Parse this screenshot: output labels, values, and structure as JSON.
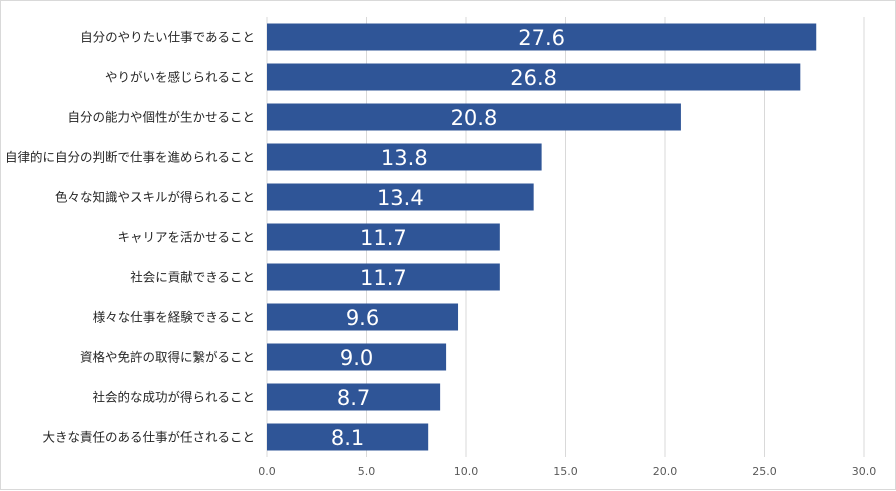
{
  "chart_data": {
    "type": "bar",
    "orientation": "horizontal",
    "categories": [
      "自分のやりたい仕事であること",
      "やりがいを感じられること",
      "自分の能力や個性が生かせること",
      "自律的に自分の判断で仕事を進められること",
      "色々な知識やスキルが得られること",
      "キャリアを活かせること",
      "社会に貢献できること",
      "様々な仕事を経験できること",
      "資格や免許の取得に繋がること",
      "社会的な成功が得られること",
      "大きな責任のある仕事が任されること"
    ],
    "values": [
      27.6,
      26.8,
      20.8,
      13.8,
      13.4,
      11.7,
      11.7,
      9.6,
      9.0,
      8.7,
      8.1
    ],
    "data_labels": [
      "27.6",
      "26.8",
      "20.8",
      "13.8",
      "13.4",
      "11.7",
      "11.7",
      "9.6",
      "9.0",
      "8.7",
      "8.1"
    ],
    "xlim": [
      0,
      30
    ],
    "x_ticks": [
      "0.0",
      "5.0",
      "10.0",
      "15.0",
      "20.0",
      "25.0",
      "30.0"
    ],
    "grid": true,
    "legend": "none",
    "colors": {
      "bar": "#2f5597",
      "grid": "#d9d9d9",
      "data_label": "#ffffff"
    }
  }
}
